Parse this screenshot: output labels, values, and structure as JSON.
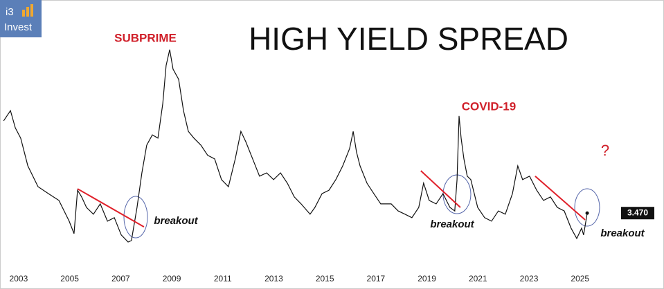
{
  "chart_data": {
    "type": "line",
    "title": "HIGH YIELD SPREAD",
    "logo": {
      "top": "i3",
      "bottom": "Invest"
    },
    "x": [
      2002.41,
      2002.68,
      2002.87,
      2003.08,
      2003.36,
      2003.76,
      2004.17,
      2004.58,
      2004.98,
      2005.17,
      2005.31,
      2005.47,
      2005.66,
      2005.93,
      2006.2,
      2006.48,
      2006.75,
      2007.02,
      2007.29,
      2007.42,
      2007.64,
      2007.83,
      2008.02,
      2008.24,
      2008.46,
      2008.65,
      2008.78,
      2008.92,
      2009.05,
      2009.27,
      2009.46,
      2009.65,
      2009.87,
      2010.14,
      2010.41,
      2010.68,
      2010.95,
      2011.22,
      2011.49,
      2011.71,
      2011.9,
      2012.17,
      2012.44,
      2012.72,
      2012.99,
      2013.26,
      2013.53,
      2013.8,
      2014.07,
      2014.42,
      2014.61,
      2014.89,
      2015.16,
      2015.43,
      2015.7,
      2015.97,
      2016.11,
      2016.24,
      2016.38,
      2016.65,
      2016.92,
      2017.19,
      2017.6,
      2017.87,
      2018.14,
      2018.41,
      2018.68,
      2018.87,
      2019.09,
      2019.36,
      2019.63,
      2019.9,
      2020.09,
      2020.18,
      2020.26,
      2020.34,
      2020.45,
      2020.58,
      2020.72,
      2020.99,
      2021.26,
      2021.53,
      2021.8,
      2022.07,
      2022.35,
      2022.56,
      2022.75,
      2023.02,
      2023.3,
      2023.57,
      2023.84,
      2024.11,
      2024.38,
      2024.65,
      2024.87,
      2025.06,
      2025.14,
      2025.28
    ],
    "values": [
      6.89,
      7.27,
      6.63,
      6.25,
      5.22,
      4.45,
      4.19,
      3.94,
      3.17,
      2.71,
      4.32,
      4.07,
      3.68,
      3.43,
      3.81,
      3.17,
      3.3,
      2.66,
      2.4,
      2.45,
      3.68,
      4.96,
      5.99,
      6.37,
      6.25,
      7.53,
      8.94,
      9.53,
      8.81,
      8.43,
      7.27,
      6.5,
      6.25,
      5.99,
      5.61,
      5.48,
      4.71,
      4.45,
      5.48,
      6.5,
      6.12,
      5.48,
      4.84,
      4.96,
      4.71,
      4.96,
      4.58,
      4.07,
      3.81,
      3.43,
      3.68,
      4.19,
      4.32,
      4.71,
      5.22,
      5.86,
      6.5,
      5.73,
      5.22,
      4.58,
      4.19,
      3.81,
      3.81,
      3.55,
      3.43,
      3.3,
      3.68,
      4.58,
      3.94,
      3.81,
      4.19,
      3.68,
      3.55,
      4.71,
      7.07,
      6.25,
      5.48,
      4.84,
      4.71,
      3.68,
      3.3,
      3.17,
      3.55,
      3.43,
      4.19,
      5.22,
      4.71,
      4.84,
      4.32,
      3.94,
      4.07,
      3.68,
      3.55,
      2.91,
      2.53,
      2.91,
      2.66,
      3.47
    ],
    "color": "#111111",
    "last_value_label": "3.470",
    "trendlines": [
      {
        "x": [
          2005.31,
          2007.91
        ],
        "values": [
          4.37,
          2.96
        ]
      },
      {
        "x": [
          2018.76,
          2020.31
        ],
        "values": [
          5.04,
          3.68
        ]
      },
      {
        "x": [
          2023.24,
          2025.2
        ],
        "values": [
          4.84,
          3.22
        ]
      }
    ],
    "trendline_color": "#e0202a",
    "annotations": [
      "SUBPRIME",
      "COVID-19",
      "?",
      "breakout",
      "breakout",
      "breakout"
    ],
    "xlim": [
      2002.27,
      2028.29
    ],
    "ylim": [
      1.63,
      11.37
    ],
    "xticks": [
      2003,
      2005,
      2007,
      2009,
      2011,
      2013,
      2015,
      2017,
      2019,
      2021,
      2023,
      2025
    ]
  }
}
